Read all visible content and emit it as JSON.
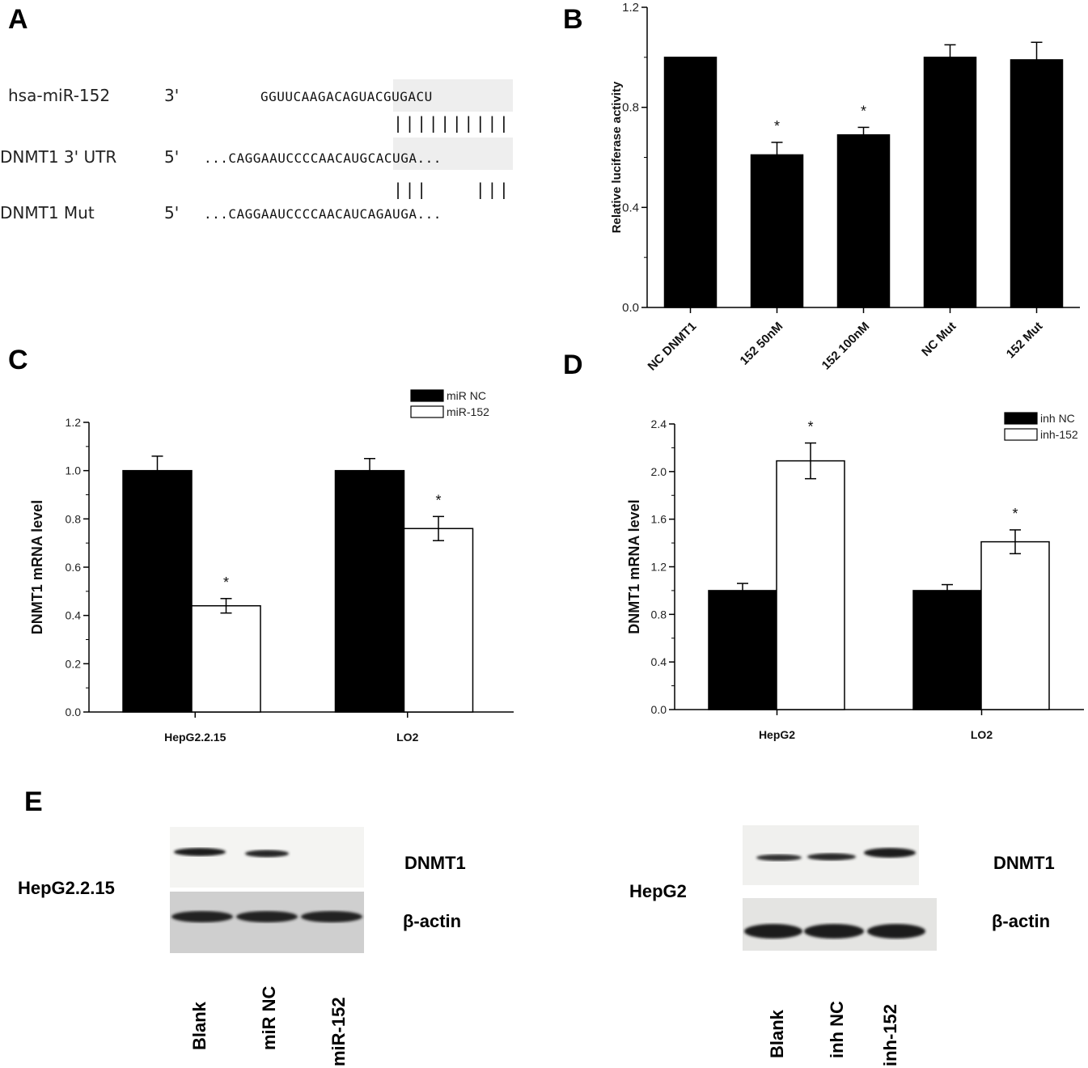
{
  "panel_a": {
    "letter": "A",
    "rows": [
      {
        "label": "hsa-miR-152",
        "strand": "3'",
        "sequence": "GGUUCAAGACAGUACGUGACU"
      },
      {
        "label": "DNMT1 3' UTR",
        "strand": "5'",
        "sequence": "...CAGGAAUCCCCAACAUGCACUGA..."
      },
      {
        "label": "DNMT1    Mut",
        "strand": "5'",
        "sequence": "...CAGGAAUCCCCAACAUCAGAUGA..."
      }
    ],
    "pairing_1": "||||||||||",
    "pairing_2": "|||    |||"
  },
  "chart_data": [
    {
      "panel": "B",
      "type": "bar",
      "ylabel": "Relative luciferase activity",
      "xlabel": "",
      "ylim": [
        0,
        1.2
      ],
      "yticks": [
        "0.0",
        "0.4",
        "0.8",
        "1.2"
      ],
      "categories": [
        "NC DNMT1",
        "152 50nM",
        "152 100nM",
        "NC Mut",
        "152 Mut"
      ],
      "series": [
        {
          "values": [
            1.0,
            0.61,
            0.69,
            1.0,
            0.99
          ],
          "errors": [
            0,
            0.05,
            0.03,
            0.05,
            0.07
          ],
          "color": "#000000"
        }
      ],
      "significance": [
        "",
        "*",
        "*",
        "",
        ""
      ]
    },
    {
      "panel": "C",
      "type": "bar",
      "ylabel": "DNMT1 mRNA level",
      "xlabel": "",
      "ylim": [
        0,
        1.2
      ],
      "yticks": [
        "0.0",
        "0.2",
        "0.4",
        "0.6",
        "0.8",
        "1.0",
        "1.2"
      ],
      "categories": [
        "HepG2.2.15",
        "LO2"
      ],
      "legend_position": "top-right",
      "series": [
        {
          "name": "miR NC",
          "values": [
            1.0,
            1.0
          ],
          "errors": [
            0.06,
            0.05
          ],
          "color": "#000000"
        },
        {
          "name": "miR-152",
          "values": [
            0.44,
            0.76
          ],
          "errors": [
            0.03,
            0.05
          ],
          "color": "#ffffff"
        }
      ],
      "significance": [
        [
          "",
          "*"
        ],
        [
          "",
          "*"
        ]
      ]
    },
    {
      "panel": "D",
      "type": "bar",
      "ylabel": "DNMT1 mRNA level",
      "xlabel": "",
      "ylim": [
        0,
        2.4
      ],
      "yticks": [
        "0.0",
        "0.4",
        "0.8",
        "1.2",
        "1.6",
        "2.0",
        "2.4"
      ],
      "categories": [
        "HepG2",
        "LO2"
      ],
      "legend_position": "top-right",
      "series": [
        {
          "name": "inh NC",
          "values": [
            1.0,
            1.0
          ],
          "errors": [
            0.06,
            0.05
          ],
          "color": "#000000"
        },
        {
          "name": "inh-152",
          "values": [
            2.09,
            1.41
          ],
          "errors": [
            0.15,
            0.1
          ],
          "color": "#ffffff"
        }
      ],
      "significance": [
        [
          "",
          "*"
        ],
        [
          "",
          "*"
        ]
      ]
    }
  ],
  "panel_letters": {
    "b": "B",
    "c": "C",
    "d": "D",
    "e": "E"
  },
  "panel_e": {
    "left": {
      "cell_line": "HepG2.2.15",
      "protein": "DNMT1",
      "control": "β-actin",
      "lanes": [
        "Blank",
        "miR NC",
        "miR-152"
      ]
    },
    "right": {
      "cell_line": "HepG2",
      "protein": "DNMT1",
      "control": "β-actin",
      "lanes": [
        "Blank",
        "inh NC",
        "inh-152"
      ]
    }
  }
}
